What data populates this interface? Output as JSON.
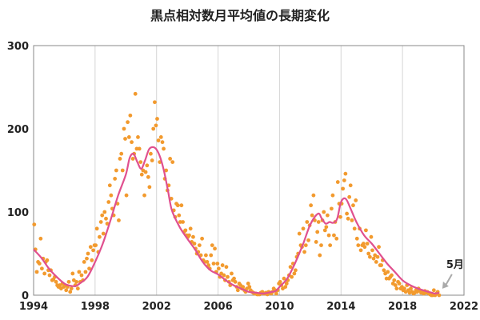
{
  "chart_data": {
    "type": "scatter",
    "title": "黒点相対数月平均値の長期変化",
    "xlabel": "",
    "ylabel": "",
    "xlim": [
      1994,
      2022
    ],
    "ylim": [
      0,
      300
    ],
    "x_ticks": [
      1994,
      1998,
      2002,
      2006,
      2010,
      2014,
      2018,
      2022
    ],
    "y_ticks": [
      0,
      100,
      200,
      300
    ],
    "grid": "vertical",
    "colors": {
      "points": "#f29a2e",
      "smoothed": "#e0508f",
      "arrow": "#aaaaaa",
      "grid": "#d6d6d6"
    },
    "series": [
      {
        "type": "scatter",
        "color": "#f29a2e",
        "x": [
          1994.04,
          1994.12,
          1994.21,
          1994.29,
          1994.38,
          1994.46,
          1994.54,
          1994.62,
          1994.71,
          1994.79,
          1994.88,
          1994.96,
          1995.04,
          1995.12,
          1995.21,
          1995.29,
          1995.38,
          1995.46,
          1995.54,
          1995.62,
          1995.71,
          1995.79,
          1995.88,
          1995.96,
          1996.04,
          1996.12,
          1996.21,
          1996.29,
          1996.38,
          1996.46,
          1996.54,
          1996.62,
          1996.71,
          1996.79,
          1996.88,
          1996.96,
          1997.04,
          1997.12,
          1997.21,
          1997.29,
          1997.38,
          1997.46,
          1997.54,
          1997.62,
          1997.71,
          1997.79,
          1997.88,
          1997.96,
          1998.04,
          1998.12,
          1998.21,
          1998.29,
          1998.38,
          1998.46,
          1998.54,
          1998.62,
          1998.71,
          1998.79,
          1998.88,
          1998.96,
          1999.04,
          1999.12,
          1999.21,
          1999.29,
          1999.38,
          1999.46,
          1999.54,
          1999.62,
          1999.71,
          1999.79,
          1999.88,
          1999.96,
          2000.04,
          2000.12,
          2000.21,
          2000.29,
          2000.38,
          2000.46,
          2000.54,
          2000.62,
          2000.71,
          2000.79,
          2000.88,
          2000.96,
          2001.04,
          2001.12,
          2001.21,
          2001.29,
          2001.38,
          2001.46,
          2001.54,
          2001.62,
          2001.71,
          2001.79,
          2001.88,
          2001.96,
          2002.04,
          2002.12,
          2002.21,
          2002.29,
          2002.38,
          2002.46,
          2002.54,
          2002.62,
          2002.71,
          2002.79,
          2002.88,
          2002.96,
          2003.04,
          2003.12,
          2003.21,
          2003.29,
          2003.38,
          2003.46,
          2003.54,
          2003.62,
          2003.71,
          2003.79,
          2003.88,
          2003.96,
          2004.04,
          2004.12,
          2004.21,
          2004.29,
          2004.38,
          2004.46,
          2004.54,
          2004.62,
          2004.71,
          2004.79,
          2004.88,
          2004.96,
          2005.04,
          2005.12,
          2005.21,
          2005.29,
          2005.38,
          2005.46,
          2005.54,
          2005.62,
          2005.71,
          2005.79,
          2005.88,
          2005.96,
          2006.04,
          2006.12,
          2006.21,
          2006.29,
          2006.38,
          2006.46,
          2006.54,
          2006.62,
          2006.71,
          2006.79,
          2006.88,
          2006.96,
          2007.04,
          2007.12,
          2007.21,
          2007.29,
          2007.38,
          2007.46,
          2007.54,
          2007.62,
          2007.71,
          2007.79,
          2007.88,
          2007.96,
          2008.04,
          2008.12,
          2008.21,
          2008.29,
          2008.38,
          2008.46,
          2008.54,
          2008.62,
          2008.71,
          2008.79,
          2008.88,
          2008.96,
          2009.04,
          2009.12,
          2009.21,
          2009.29,
          2009.38,
          2009.46,
          2009.54,
          2009.62,
          2009.71,
          2009.79,
          2009.88,
          2009.96,
          2010.04,
          2010.12,
          2010.21,
          2010.29,
          2010.38,
          2010.46,
          2010.54,
          2010.62,
          2010.71,
          2010.79,
          2010.88,
          2010.96,
          2011.04,
          2011.12,
          2011.21,
          2011.29,
          2011.38,
          2011.46,
          2011.54,
          2011.62,
          2011.71,
          2011.79,
          2011.88,
          2011.96,
          2012.04,
          2012.12,
          2012.21,
          2012.29,
          2012.38,
          2012.46,
          2012.54,
          2012.62,
          2012.71,
          2012.79,
          2012.88,
          2012.96,
          2013.04,
          2013.12,
          2013.21,
          2013.29,
          2013.38,
          2013.46,
          2013.54,
          2013.62,
          2013.71,
          2013.79,
          2013.88,
          2013.96,
          2014.04,
          2014.12,
          2014.21,
          2014.29,
          2014.38,
          2014.46,
          2014.54,
          2014.62,
          2014.71,
          2014.79,
          2014.88,
          2014.96,
          2015.04,
          2015.12,
          2015.21,
          2015.29,
          2015.38,
          2015.46,
          2015.54,
          2015.62,
          2015.71,
          2015.79,
          2015.88,
          2015.96,
          2016.04,
          2016.12,
          2016.21,
          2016.29,
          2016.38,
          2016.46,
          2016.54,
          2016.62,
          2016.71,
          2016.79,
          2016.88,
          2016.96,
          2017.04,
          2017.12,
          2017.21,
          2017.29,
          2017.38,
          2017.46,
          2017.54,
          2017.62,
          2017.71,
          2017.79,
          2017.88,
          2017.96,
          2018.04,
          2018.12,
          2018.21,
          2018.29,
          2018.38,
          2018.46,
          2018.54,
          2018.62,
          2018.71,
          2018.79,
          2018.88,
          2018.96,
          2019.04,
          2019.12,
          2019.21,
          2019.29,
          2019.38,
          2019.46,
          2019.54,
          2019.62,
          2019.71,
          2019.79,
          2019.88,
          2019.96,
          2020.04,
          2020.12,
          2020.21,
          2020.29,
          2020.38
        ],
        "y": [
          85,
          55,
          28,
          40,
          38,
          68,
          32,
          44,
          26,
          40,
          42,
          30,
          24,
          30,
          18,
          19,
          22,
          16,
          12,
          10,
          12,
          8,
          14,
          10,
          12,
          6,
          10,
          16,
          4,
          8,
          26,
          18,
          12,
          16,
          8,
          28,
          16,
          24,
          18,
          40,
          28,
          44,
          50,
          32,
          58,
          42,
          54,
          60,
          60,
          80,
          52,
          70,
          88,
          96,
          74,
          100,
          92,
          86,
          112,
          132,
          120,
          104,
          96,
          140,
          150,
          110,
          90,
          164,
          170,
          150,
          200,
          188,
          120,
          208,
          190,
          216,
          184,
          164,
          170,
          242,
          176,
          190,
          176,
          160,
          145,
          150,
          120,
          148,
          156,
          142,
          130,
          170,
          162,
          200,
          232,
          204,
          212,
          186,
          160,
          190,
          184,
          176,
          140,
          150,
          126,
          132,
          164,
          116,
          160,
          102,
          94,
          110,
          108,
          96,
          88,
          108,
          88,
          76,
          78,
          72,
          70,
          72,
          80,
          64,
          70,
          62,
          56,
          50,
          52,
          60,
          48,
          68,
          42,
          40,
          48,
          40,
          36,
          32,
          48,
          60,
          38,
          56,
          28,
          38,
          32,
          22,
          26,
          36,
          24,
          18,
          34,
          22,
          16,
          12,
          26,
          18,
          20,
          16,
          10,
          6,
          14,
          12,
          8,
          10,
          6,
          4,
          8,
          14,
          10,
          6,
          4,
          3,
          2,
          2,
          1,
          1,
          1,
          3,
          4,
          2,
          2,
          3,
          1,
          4,
          3,
          2,
          4,
          8,
          6,
          2,
          6,
          14,
          16,
          12,
          8,
          20,
          10,
          14,
          18,
          24,
          34,
          22,
          38,
          26,
          30,
          46,
          50,
          74,
          60,
          58,
          80,
          52,
          60,
          88,
          66,
          84,
          108,
          96,
          120,
          90,
          64,
          76,
          88,
          48,
          60,
          90,
          100,
          78,
          82,
          96,
          72,
          60,
          104,
          120,
          72,
          88,
          68,
          136,
          110,
          94,
          110,
          128,
          138,
          146,
          98,
          92,
          118,
          132,
          90,
          108,
          80,
          114,
          68,
          60,
          80,
          54,
          60,
          62,
          58,
          78,
          62,
          50,
          46,
          70,
          54,
          44,
          48,
          40,
          46,
          58,
          36,
          36,
          42,
          30,
          26,
          20,
          28,
          20,
          22,
          24,
          14,
          18,
          12,
          8,
          16,
          14,
          8,
          10,
          6,
          8,
          4,
          12,
          6,
          3,
          8,
          4,
          2,
          3,
          6,
          4,
          8,
          6,
          3,
          4,
          2,
          5,
          3,
          4,
          2,
          1,
          0,
          0,
          6,
          0,
          2,
          4,
          0
        ]
      },
      {
        "type": "line",
        "color": "#e0508f",
        "x": [
          1994.0,
          1994.5,
          1995.0,
          1995.5,
          1996.0,
          1996.25,
          1996.5,
          1996.75,
          1997.0,
          1997.5,
          1998.0,
          1998.5,
          1999.0,
          1999.5,
          2000.0,
          2000.25,
          2000.5,
          2000.75,
          2001.0,
          2001.25,
          2001.5,
          2001.75,
          2002.0,
          2002.25,
          2002.5,
          2002.75,
          2003.0,
          2003.5,
          2004.0,
          2004.5,
          2005.0,
          2005.5,
          2006.0,
          2006.5,
          2007.0,
          2007.5,
          2008.0,
          2008.5,
          2008.92,
          2009.25,
          2009.5,
          2009.75,
          2010.0,
          2010.5,
          2011.0,
          2011.5,
          2012.0,
          2012.5,
          2012.75,
          2013.0,
          2013.25,
          2013.5,
          2013.75,
          2014.0,
          2014.3,
          2014.6,
          2015.0,
          2015.5,
          2016.0,
          2016.5,
          2017.0,
          2017.5,
          2018.0,
          2018.5,
          2019.0,
          2019.5,
          2019.92,
          2020.1,
          2020.38
        ],
        "y": [
          55,
          45,
          32,
          22,
          14,
          12,
          11,
          11,
          14,
          22,
          40,
          62,
          90,
          120,
          145,
          165,
          170,
          160,
          152,
          162,
          175,
          178,
          175,
          165,
          148,
          125,
          102,
          82,
          68,
          55,
          40,
          30,
          25,
          18,
          12,
          8,
          4,
          3,
          2,
          3,
          4,
          5,
          10,
          20,
          38,
          60,
          85,
          98,
          92,
          86,
          88,
          87,
          92,
          112,
          116,
          105,
          88,
          72,
          62,
          50,
          38,
          28,
          18,
          12,
          8,
          5,
          3,
          2,
          3
        ]
      }
    ],
    "annotations": [
      {
        "text": "5月",
        "x": 2020.38,
        "y": 2
      }
    ]
  }
}
